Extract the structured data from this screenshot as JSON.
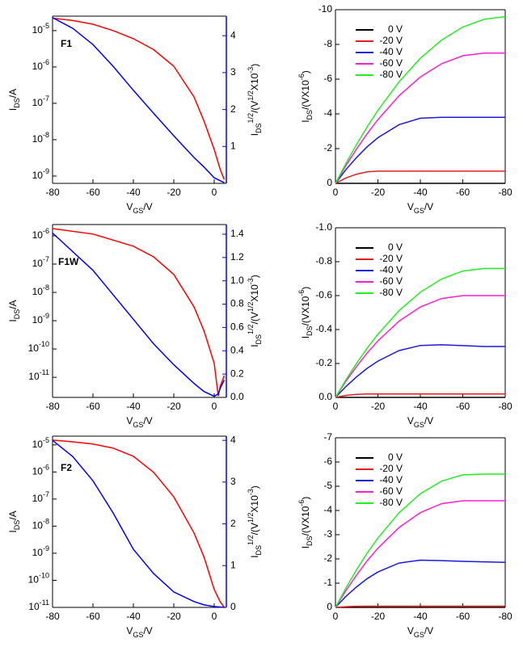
{
  "chart_data": [
    {
      "type": "line",
      "annotation": "F1",
      "ylog": true,
      "x": [
        -80,
        -70,
        -60,
        -50,
        -40,
        -30,
        -20,
        -10,
        -5,
        0,
        3,
        5
      ],
      "xlim": [
        -80,
        6
      ],
      "xticks": [
        -80,
        -60,
        -40,
        -20,
        0
      ],
      "ylim": [
        6.3e-10,
        2.5e-05
      ],
      "yticks": [
        {
          "value": 1e-05,
          "base": "10",
          "exponent": "-5"
        },
        {
          "value": 1e-06,
          "base": "10",
          "exponent": "-6"
        },
        {
          "value": 1e-07,
          "base": "10",
          "exponent": "-7"
        },
        {
          "value": 1e-08,
          "base": "10",
          "exponent": "-8"
        },
        {
          "value": 1e-09,
          "base": "10",
          "exponent": "-9"
        }
      ],
      "y2lim": [
        0,
        4.53
      ],
      "y2ticks": [
        1,
        2,
        3,
        4
      ],
      "y2color": "#0000ff",
      "xlabel": [
        {
          "text": "V"
        },
        {
          "text": "GS",
          "script": "sub"
        },
        {
          "text": "/V"
        }
      ],
      "ylabel": [
        {
          "text": "I"
        },
        {
          "text": "DS",
          "script": "sub"
        },
        {
          "text": "/A"
        }
      ],
      "y2label": [
        {
          "text": "I"
        },
        {
          "text": "DS",
          "script": "sub"
        },
        {
          "text": "1/2",
          "script": "sup"
        },
        {
          "text": "/(V"
        },
        {
          "text": "1/2",
          "script": "sup"
        },
        {
          "text": "X10"
        },
        {
          "text": "-3",
          "script": "sup"
        },
        {
          "text": ")"
        }
      ],
      "series": [
        {
          "color": "#ff0000",
          "values": [
            2.2e-05,
            1.9e-05,
            1.5e-05,
            1e-05,
            6e-06,
            3e-06,
            1.05e-06,
            1.5e-07,
            3.2e-08,
            5.4e-09,
            1.5e-09,
            8e-10
          ]
        },
        {
          "color": "#0000ff",
          "axis": "y2",
          "values": [
            4.49,
            4.2,
            3.76,
            3.17,
            2.52,
            1.9,
            1.29,
            0.7,
            0.44,
            0.15,
            0.07,
            0.02
          ]
        }
      ]
    },
    {
      "type": "line",
      "x": [
        0,
        -5,
        -10,
        -15,
        -20,
        -30,
        -40,
        -50,
        -60,
        -70,
        -80
      ],
      "xlim": [
        0,
        -80
      ],
      "xticks": [
        0,
        -20,
        -40,
        -60,
        -80
      ],
      "ylim": [
        0,
        -10
      ],
      "yticks": [
        0,
        -2,
        -4,
        -6,
        -8,
        -10
      ],
      "legend": "upper left",
      "xlabel": [
        {
          "text": "V"
        },
        {
          "text": "GS",
          "script": "sub"
        },
        {
          "text": "/V"
        }
      ],
      "ylabel": [
        {
          "text": "I"
        },
        {
          "text": "DS",
          "script": "sub"
        },
        {
          "text": "/(VX10"
        },
        {
          "text": "-6",
          "script": "sup"
        },
        {
          "text": ")"
        }
      ],
      "series": [
        {
          "name": "0 V",
          "color": "#000000",
          "values": [
            0,
            0,
            0,
            0,
            0,
            0,
            0,
            0,
            0,
            0,
            0
          ]
        },
        {
          "name": "-20 V",
          "color": "#e0201e",
          "values": [
            0,
            -0.31,
            -0.53,
            -0.66,
            -0.7,
            -0.7,
            -0.7,
            -0.7,
            -0.7,
            -0.7,
            -0.7
          ]
        },
        {
          "name": "-40 V",
          "color": "#1a1adc",
          "values": [
            0,
            -0.8,
            -1.5,
            -2.11,
            -2.63,
            -3.38,
            -3.75,
            -3.8,
            -3.8,
            -3.8,
            -3.8
          ]
        },
        {
          "name": "-60 V",
          "color": "#ff1fd0",
          "values": [
            0,
            -1.03,
            -1.99,
            -2.87,
            -3.67,
            -5.05,
            -6.12,
            -6.89,
            -7.35,
            -7.5,
            -7.5
          ]
        },
        {
          "name": "-80 V",
          "color": "#22ee22",
          "values": [
            0,
            -1.16,
            -2.25,
            -3.26,
            -4.2,
            -5.85,
            -7.2,
            -8.25,
            -9.0,
            -9.45,
            -9.6
          ]
        }
      ]
    },
    {
      "type": "line",
      "annotation": "F1W",
      "ylog": true,
      "x": [
        -80,
        -60,
        -40,
        -30,
        -20,
        -10,
        -5,
        0,
        2,
        3,
        5
      ],
      "xlim": [
        -80,
        6
      ],
      "xticks": [
        -80,
        -60,
        -40,
        -20,
        0
      ],
      "ylim": [
        1.95e-12,
        2.5e-06
      ],
      "yticks": [
        {
          "value": 1e-06,
          "base": "10",
          "exponent": "-6"
        },
        {
          "value": 1e-07,
          "base": "10",
          "exponent": "-7"
        },
        {
          "value": 1e-08,
          "base": "10",
          "exponent": "-8"
        },
        {
          "value": 1e-09,
          "base": "10",
          "exponent": "-9"
        },
        {
          "value": 1e-10,
          "base": "10",
          "exponent": "-10"
        },
        {
          "value": 1e-11,
          "base": "10",
          "exponent": "-11"
        }
      ],
      "y2lim": [
        0,
        1.483
      ],
      "y2ticks": [
        {
          "value": 0,
          "label": "0.0"
        },
        0.2,
        0.4,
        0.6,
        0.8,
        {
          "value": 1,
          "label": "1.0"
        },
        1.2,
        1.4
      ],
      "y2color": "#0000ff",
      "xlabel": [
        {
          "text": "V"
        },
        {
          "text": "GS",
          "script": "sub"
        },
        {
          "text": "/V"
        }
      ],
      "ylabel": [
        {
          "text": "I"
        },
        {
          "text": "DS",
          "script": "sub"
        },
        {
          "text": "/A"
        }
      ],
      "y2label": [
        {
          "text": "I"
        },
        {
          "text": "DS",
          "script": "sub"
        },
        {
          "text": "1/2",
          "script": "sup"
        },
        {
          "text": "/(V"
        },
        {
          "text": "1/2",
          "script": "sup"
        },
        {
          "text": "X10"
        },
        {
          "text": "-3",
          "script": "sup"
        },
        {
          "text": ")"
        }
      ],
      "series": [
        {
          "color": "#ff0000",
          "values": [
            1.8e-06,
            1.15e-06,
            4.3e-07,
            1.8e-07,
            4.3e-08,
            3.1e-09,
            4.3e-10,
            3.1e-11,
            2.2e-12,
            4.9e-12,
            1.15e-11
          ]
        },
        {
          "color": "#0000ff",
          "axis": "y2",
          "values": [
            1.41,
            1.09,
            0.67,
            0.46,
            0.28,
            0.12,
            0.05,
            0.01,
            0.03,
            0.08,
            0.15
          ]
        }
      ]
    },
    {
      "type": "line",
      "x": [
        0,
        -5,
        -10,
        -15,
        -20,
        -30,
        -40,
        -50,
        -60,
        -70,
        -80
      ],
      "xlim": [
        0,
        -80
      ],
      "xticks": [
        0,
        -20,
        -40,
        -60,
        -80
      ],
      "ylim": [
        0,
        -1
      ],
      "yticks": [
        {
          "value": 0,
          "label": "0.0"
        },
        -0.2,
        -0.4,
        -0.6,
        -0.8,
        {
          "value": -1,
          "label": "-1.0"
        }
      ],
      "legend": "upper left",
      "xlabel": [
        {
          "text": "V"
        },
        {
          "text": "GS",
          "script": "sub"
        },
        {
          "text": "/V"
        }
      ],
      "ylabel": [
        {
          "text": "I"
        },
        {
          "text": "DS",
          "script": "sub"
        },
        {
          "text": "/(VX10"
        },
        {
          "text": "-6",
          "script": "sup"
        },
        {
          "text": ")"
        }
      ],
      "series": [
        {
          "name": "0 V",
          "color": "#000000",
          "values": [
            0,
            0,
            0,
            0,
            0,
            0,
            0,
            0,
            0,
            0,
            0
          ]
        },
        {
          "name": "-20 V",
          "color": "#e0201e",
          "values": [
            0,
            -0.012,
            -0.018,
            -0.02,
            -0.02,
            -0.02,
            -0.02,
            -0.02,
            -0.02,
            -0.02,
            -0.02
          ]
        },
        {
          "name": "-40 V",
          "color": "#1a1adc",
          "values": [
            0,
            -0.065,
            -0.122,
            -0.172,
            -0.214,
            -0.276,
            -0.306,
            -0.31,
            -0.305,
            -0.3,
            -0.3
          ]
        },
        {
          "name": "-60 V",
          "color": "#ff1fd0",
          "values": [
            0,
            -0.096,
            -0.183,
            -0.263,
            -0.333,
            -0.45,
            -0.533,
            -0.583,
            -0.6,
            -0.6,
            -0.6
          ]
        },
        {
          "name": "-80 V",
          "color": "#22ee22",
          "values": [
            0,
            -0.105,
            -0.202,
            -0.291,
            -0.372,
            -0.512,
            -0.62,
            -0.698,
            -0.745,
            -0.76,
            -0.76
          ]
        }
      ]
    },
    {
      "type": "line",
      "annotation": "F2",
      "ylog": true,
      "x": [
        -80,
        -70,
        -60,
        -50,
        -40,
        -30,
        -20,
        -10,
        -5,
        0,
        3,
        5
      ],
      "xlim": [
        -80,
        6
      ],
      "xticks": [
        -80,
        -60,
        -40,
        -20,
        0
      ],
      "ylim": [
        1e-11,
        2.1e-05
      ],
      "yticks": [
        {
          "value": 1e-05,
          "base": "10",
          "exponent": "-5"
        },
        {
          "value": 1e-06,
          "base": "10",
          "exponent": "-6"
        },
        {
          "value": 1e-07,
          "base": "10",
          "exponent": "-7"
        },
        {
          "value": 1e-08,
          "base": "10",
          "exponent": "-8"
        },
        {
          "value": 1e-09,
          "base": "10",
          "exponent": "-9"
        },
        {
          "value": 1e-10,
          "base": "10",
          "exponent": "-10"
        },
        {
          "value": 1e-11,
          "base": "10",
          "exponent": "-11"
        }
      ],
      "y2lim": [
        0,
        4.1
      ],
      "y2ticks": [
        0,
        1,
        2,
        3,
        4
      ],
      "y2color": "#0000ff",
      "xlabel": [
        {
          "text": "V"
        },
        {
          "text": "GS",
          "script": "sub"
        },
        {
          "text": "/V"
        }
      ],
      "ylabel": [
        {
          "text": "I"
        },
        {
          "text": "DS",
          "script": "sub"
        },
        {
          "text": "/A"
        }
      ],
      "y2label": [
        {
          "text": "I"
        },
        {
          "text": "DS",
          "script": "sub"
        },
        {
          "text": "1/2",
          "script": "sup"
        },
        {
          "text": "/(V"
        },
        {
          "text": "1/2",
          "script": "sup"
        },
        {
          "text": "X10"
        },
        {
          "text": "-3",
          "script": "sup"
        },
        {
          "text": ")"
        }
      ],
      "series": [
        {
          "color": "#ff0000",
          "values": [
            1.5e-05,
            1.3e-05,
            1.07e-05,
            7.6e-06,
            3.8e-06,
            9.7e-07,
            1.2e-07,
            5.6e-09,
            7.1e-10,
            4.6e-11,
            1.6e-11,
            1e-11
          ]
        },
        {
          "color": "#0000ff",
          "axis": "y2",
          "values": [
            4.0,
            3.61,
            3.03,
            2.26,
            1.39,
            0.81,
            0.37,
            0.14,
            0.06,
            0.02,
            0.01,
            0
          ]
        }
      ]
    },
    {
      "type": "line",
      "x": [
        0,
        -5,
        -10,
        -15,
        -20,
        -30,
        -40,
        -50,
        -60,
        -70,
        -80
      ],
      "xlim": [
        0,
        -80
      ],
      "xticks": [
        0,
        -20,
        -40,
        -60,
        -80
      ],
      "ylim": [
        0,
        -7
      ],
      "yticks": [
        0,
        -1,
        -2,
        -3,
        -4,
        -5,
        -6,
        -7
      ],
      "legend": "upper left",
      "xlabel": [
        {
          "text": "V"
        },
        {
          "text": "GS",
          "script": "sub"
        },
        {
          "text": "/V"
        }
      ],
      "ylabel": [
        {
          "text": "I"
        },
        {
          "text": "DS",
          "script": "sub"
        },
        {
          "text": "/(VX10"
        },
        {
          "text": "-6",
          "script": "sup"
        },
        {
          "text": ")"
        }
      ],
      "series": [
        {
          "name": "0 V",
          "color": "#000000",
          "values": [
            0,
            0,
            0,
            0,
            0,
            0,
            0,
            0,
            0,
            0,
            0
          ]
        },
        {
          "name": "-20 V",
          "color": "#e0201e",
          "values": [
            0,
            -0.03,
            -0.045,
            -0.05,
            -0.05,
            -0.05,
            -0.05,
            -0.05,
            -0.05,
            -0.05,
            -0.05
          ]
        },
        {
          "name": "-40 V",
          "color": "#1a1adc",
          "values": [
            0,
            -0.46,
            -0.85,
            -1.19,
            -1.46,
            -1.83,
            -1.95,
            -1.93,
            -1.9,
            -1.88,
            -1.86
          ]
        },
        {
          "name": "-60 V",
          "color": "#ff1fd0",
          "values": [
            0,
            -0.7,
            -1.34,
            -1.93,
            -2.44,
            -3.3,
            -3.91,
            -4.28,
            -4.4,
            -4.4,
            -4.4
          ]
        },
        {
          "name": "-80 V",
          "color": "#22ee22",
          "values": [
            0,
            -0.81,
            -1.56,
            -2.25,
            -2.86,
            -3.91,
            -4.69,
            -5.21,
            -5.47,
            -5.5,
            -5.5
          ]
        }
      ]
    }
  ]
}
